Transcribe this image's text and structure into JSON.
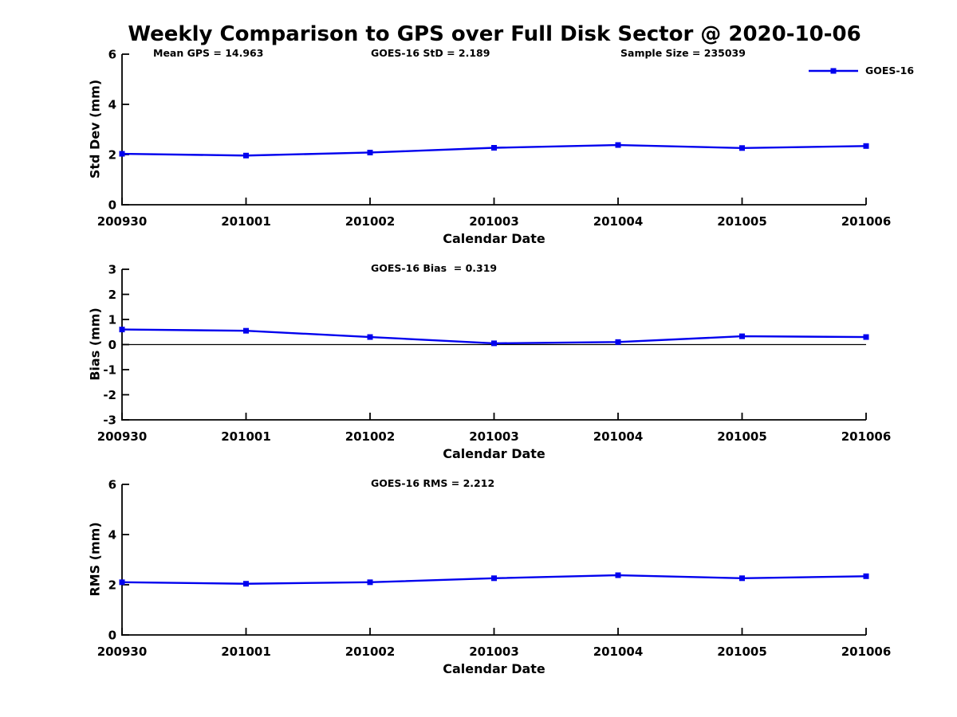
{
  "title": "Weekly Comparison to GPS over Full Disk Sector @ 2020-10-06",
  "legend": {
    "label": "GOES-16",
    "color": "#0000ee",
    "marker": "filled-square"
  },
  "chart_data": [
    {
      "type": "line",
      "name": "std-dev-vs-date",
      "annotations": [
        "Mean GPS = 14.963",
        "GOES-16 StD = 2.189",
        "Sample Size = 235039"
      ],
      "x": [
        "200930",
        "201001",
        "201002",
        "201003",
        "201004",
        "201005",
        "201006"
      ],
      "series": [
        {
          "name": "GOES-16",
          "color": "#0000ee",
          "marker": "square",
          "values": [
            2.03,
            1.96,
            2.08,
            2.27,
            2.38,
            2.26,
            2.34
          ]
        }
      ],
      "xlabel": "Calendar Date",
      "ylabel": "Std Dev (mm)",
      "ylim": [
        0,
        6
      ],
      "yticks": [
        0,
        2,
        4,
        6
      ],
      "grid": false,
      "zero_line": false,
      "legend_position": "outside-top-right"
    },
    {
      "type": "line",
      "name": "bias-vs-date",
      "annotations": [
        "GOES-16 Bias  = 0.319"
      ],
      "x": [
        "200930",
        "201001",
        "201002",
        "201003",
        "201004",
        "201005",
        "201006"
      ],
      "series": [
        {
          "name": "GOES-16",
          "color": "#0000ee",
          "marker": "square",
          "values": [
            0.6,
            0.55,
            0.3,
            0.05,
            0.1,
            0.33,
            0.3
          ]
        }
      ],
      "xlabel": "Calendar Date",
      "ylabel": "Bias (mm)",
      "ylim": [
        -3,
        3
      ],
      "yticks": [
        -3,
        -2,
        -1,
        0,
        1,
        2,
        3
      ],
      "grid": false,
      "zero_line": true
    },
    {
      "type": "line",
      "name": "rms-vs-date",
      "annotations": [
        "GOES-16 RMS = 2.212"
      ],
      "x": [
        "200930",
        "201001",
        "201002",
        "201003",
        "201004",
        "201005",
        "201006"
      ],
      "series": [
        {
          "name": "GOES-16",
          "color": "#0000ee",
          "marker": "square",
          "values": [
            2.1,
            2.04,
            2.1,
            2.26,
            2.38,
            2.26,
            2.34
          ]
        }
      ],
      "xlabel": "Calendar Date",
      "ylabel": "RMS (mm)",
      "ylim": [
        0,
        6
      ],
      "yticks": [
        0,
        2,
        4,
        6
      ],
      "grid": false,
      "zero_line": false
    }
  ]
}
